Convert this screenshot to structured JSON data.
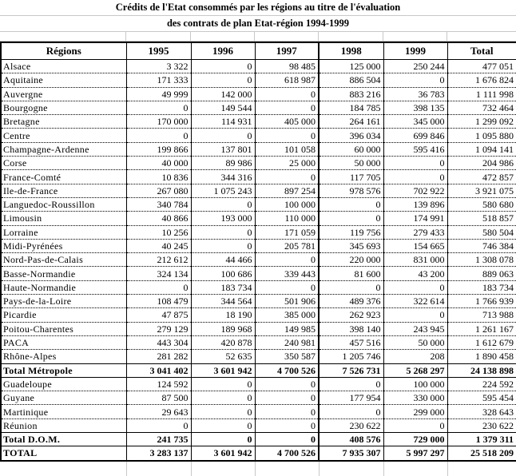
{
  "title_line1": "Crédits de l'Etat consommés par les régions au titre de l'évaluation",
  "title_line2": "des contrats de plan Etat-région 1994-1999",
  "columns": [
    "Régions",
    "1995",
    "1996",
    "1997",
    "1998",
    "1999",
    "Total"
  ],
  "rows": [
    {
      "region": "Alsace",
      "values": [
        "3 322",
        "0",
        "98 485",
        "125 000",
        "250 244",
        "477 051"
      ]
    },
    {
      "region": "Aquitaine",
      "values": [
        "171 333",
        "0",
        "618 987",
        "886 504",
        "0",
        "1 676 824"
      ]
    },
    {
      "region": "Auvergne",
      "values": [
        "49 999",
        "142 000",
        "0",
        "883 216",
        "36 783",
        "1 111 998"
      ]
    },
    {
      "region": "Bourgogne",
      "values": [
        "0",
        "149 544",
        "0",
        "184 785",
        "398 135",
        "732 464"
      ]
    },
    {
      "region": "Bretagne",
      "values": [
        "170 000",
        "114 931",
        "405 000",
        "264 161",
        "345 000",
        "1 299 092"
      ]
    },
    {
      "region": "Centre",
      "values": [
        "0",
        "0",
        "0",
        "396 034",
        "699 846",
        "1 095 880"
      ]
    },
    {
      "region": "Champagne-Ardenne",
      "values": [
        "199 866",
        "137 801",
        "101 058",
        "60 000",
        "595 416",
        "1 094 141"
      ]
    },
    {
      "region": "Corse",
      "values": [
        "40 000",
        "89 986",
        "25 000",
        "50 000",
        "0",
        "204 986"
      ]
    },
    {
      "region": "France-Comté",
      "values": [
        "10 836",
        "344 316",
        "0",
        "117 705",
        "0",
        "472 857"
      ]
    },
    {
      "region": "Ile-de-France",
      "values": [
        "267 080",
        "1 075 243",
        "897 254",
        "978 576",
        "702 922",
        "3 921 075"
      ]
    },
    {
      "region": "Languedoc-Roussillon",
      "values": [
        "340 784",
        "0",
        "100 000",
        "0",
        "139 896",
        "580 680"
      ]
    },
    {
      "region": "Limousin",
      "values": [
        "40 866",
        "193 000",
        "110 000",
        "0",
        "174 991",
        "518 857"
      ]
    },
    {
      "region": "Lorraine",
      "values": [
        "10 256",
        "0",
        "171 059",
        "119 756",
        "279 433",
        "580 504"
      ]
    },
    {
      "region": "Midi-Pyrénées",
      "values": [
        "40 245",
        "0",
        "205 781",
        "345 693",
        "154 665",
        "746 384"
      ]
    },
    {
      "region": "Nord-Pas-de-Calais",
      "values": [
        "212 612",
        "44 466",
        "0",
        "220 000",
        "831 000",
        "1 308 078"
      ]
    },
    {
      "region": "Basse-Normandie",
      "values": [
        "324 134",
        "100 686",
        "339 443",
        "81 600",
        "43 200",
        "889 063"
      ]
    },
    {
      "region": "Haute-Normandie",
      "values": [
        "0",
        "183 734",
        "0",
        "0",
        "0",
        "183 734"
      ]
    },
    {
      "region": "Pays-de-la-Loire",
      "values": [
        "108 479",
        "344 564",
        "501 906",
        "489 376",
        "322 614",
        "1 766 939"
      ]
    },
    {
      "region": "Picardie",
      "values": [
        "47 875",
        "18 190",
        "385 000",
        "262 923",
        "0",
        "713 988"
      ]
    },
    {
      "region": "Poitou-Charentes",
      "values": [
        "279 129",
        "189 968",
        "149 985",
        "398 140",
        "243 945",
        "1 261 167"
      ]
    },
    {
      "region": "PACA",
      "values": [
        "443 304",
        "420 878",
        "240 981",
        "457 516",
        "50 000",
        "1 612 679"
      ]
    },
    {
      "region": "Rhône-Alpes",
      "values": [
        "281 282",
        "52 635",
        "350 587",
        "1 205 746",
        "208",
        "1 890 458"
      ]
    },
    {
      "region": "Total Métropole",
      "bold": true,
      "values": [
        "3 041 402",
        "3 601 942",
        "4 700 526",
        "7 526 731",
        "5 268 297",
        "24 138 898"
      ]
    },
    {
      "region": "Guadeloupe",
      "values": [
        "124 592",
        "0",
        "0",
        "0",
        "100 000",
        "224 592"
      ]
    },
    {
      "region": "Guyane",
      "values": [
        "87 500",
        "0",
        "0",
        "177 954",
        "330 000",
        "595 454"
      ]
    },
    {
      "region": "Martinique",
      "values": [
        "29 643",
        "0",
        "0",
        "0",
        "299 000",
        "328 643"
      ]
    },
    {
      "region": "Réunion",
      "values": [
        "0",
        "0",
        "0",
        "230 622",
        "0",
        "230 622"
      ]
    },
    {
      "region": "Total D.O.M.",
      "bold": true,
      "values": [
        "241 735",
        "0",
        "0",
        "408 576",
        "729 000",
        "1 379 311"
      ]
    },
    {
      "region": "TOTAL",
      "bold": true,
      "values": [
        "3 283 137",
        "3 601 942",
        "4 700 526",
        "7 935 307",
        "5 997 297",
        "25 518 209"
      ]
    }
  ]
}
